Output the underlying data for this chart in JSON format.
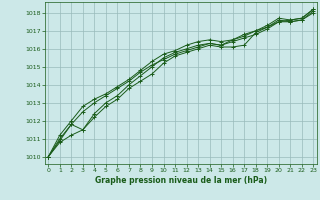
{
  "bg_color": "#cce8e8",
  "grid_color": "#99bbbb",
  "line_color": "#1a5c1a",
  "text_color": "#1a5c1a",
  "title": "Graphe pression niveau de la mer (hPa)",
  "xlim": [
    -0.3,
    23.3
  ],
  "ylim": [
    1009.6,
    1018.6
  ],
  "yticks": [
    1010,
    1011,
    1012,
    1013,
    1014,
    1015,
    1016,
    1017,
    1018
  ],
  "xticks": [
    0,
    1,
    2,
    3,
    4,
    5,
    6,
    7,
    8,
    9,
    10,
    11,
    12,
    13,
    14,
    15,
    16,
    17,
    18,
    19,
    20,
    21,
    22,
    23
  ],
  "series": [
    [
      1010.0,
      1010.9,
      1011.8,
      1011.5,
      1012.2,
      1012.8,
      1013.2,
      1013.8,
      1014.2,
      1014.6,
      1015.2,
      1015.6,
      1015.8,
      1016.0,
      1016.2,
      1016.1,
      1016.1,
      1016.2,
      1016.9,
      1017.2,
      1017.5,
      1017.6,
      1017.7,
      1018.2
    ],
    [
      1010.0,
      1010.8,
      1011.2,
      1011.5,
      1012.4,
      1013.0,
      1013.4,
      1014.0,
      1014.5,
      1015.0,
      1015.5,
      1015.8,
      1016.0,
      1016.2,
      1016.3,
      1016.2,
      1016.5,
      1016.8,
      1017.0,
      1017.3,
      1017.7,
      1017.6,
      1017.7,
      1018.2
    ],
    [
      1010.0,
      1011.0,
      1011.8,
      1012.5,
      1013.0,
      1013.4,
      1013.8,
      1014.2,
      1014.7,
      1015.1,
      1015.4,
      1015.7,
      1015.9,
      1016.1,
      1016.3,
      1016.2,
      1016.4,
      1016.6,
      1016.8,
      1017.1,
      1017.5,
      1017.5,
      1017.6,
      1018.1
    ],
    [
      1010.0,
      1011.2,
      1012.0,
      1012.8,
      1013.2,
      1013.5,
      1013.9,
      1014.3,
      1014.8,
      1015.3,
      1015.7,
      1015.9,
      1016.2,
      1016.4,
      1016.5,
      1016.4,
      1016.5,
      1016.7,
      1017.0,
      1017.2,
      1017.6,
      1017.5,
      1017.6,
      1018.0
    ]
  ]
}
